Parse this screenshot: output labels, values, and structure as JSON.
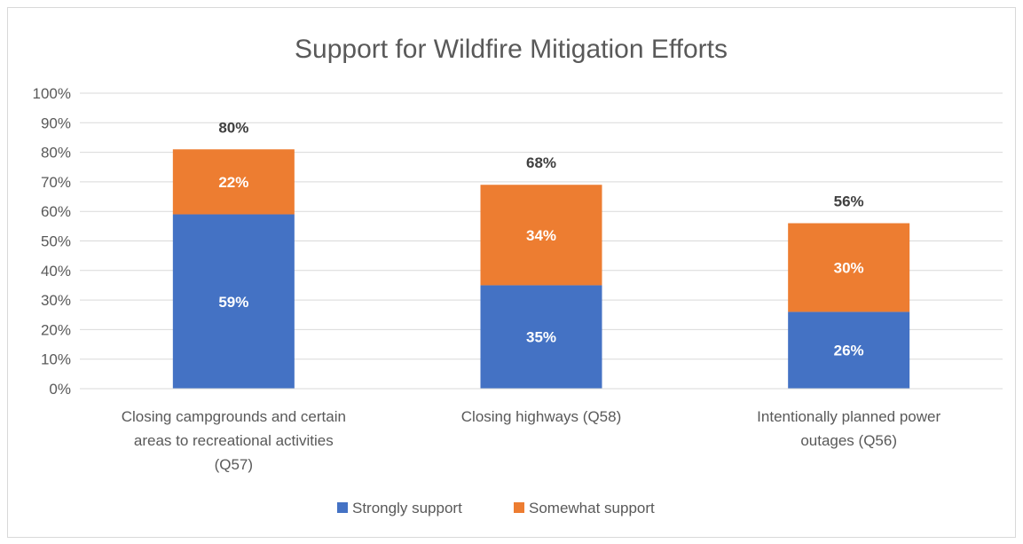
{
  "chart_data": {
    "type": "bar",
    "stacked": true,
    "title": "Support for Wildfire Mitigation Efforts",
    "categories": [
      [
        "Closing campgrounds and certain",
        "areas to recreational activities",
        "(Q57)"
      ],
      [
        "Closing highways (Q58)"
      ],
      [
        "Intentionally planned power",
        "outages (Q56)"
      ]
    ],
    "series": [
      {
        "name": "Strongly support",
        "color": "#4472c4",
        "values": [
          59,
          35,
          26
        ],
        "labels": [
          "59%",
          "35%",
          "26%"
        ]
      },
      {
        "name": "Somewhat support",
        "color": "#ed7d31",
        "values": [
          22,
          34,
          30
        ],
        "labels": [
          "22%",
          "34%",
          "30%"
        ]
      }
    ],
    "totals": [
      "80%",
      "68%",
      "56%"
    ],
    "ylim": [
      0,
      100
    ],
    "yticks": [
      "0%",
      "10%",
      "20%",
      "30%",
      "40%",
      "50%",
      "60%",
      "70%",
      "80%",
      "90%",
      "100%"
    ],
    "grid": true,
    "legend_position": "bottom"
  }
}
